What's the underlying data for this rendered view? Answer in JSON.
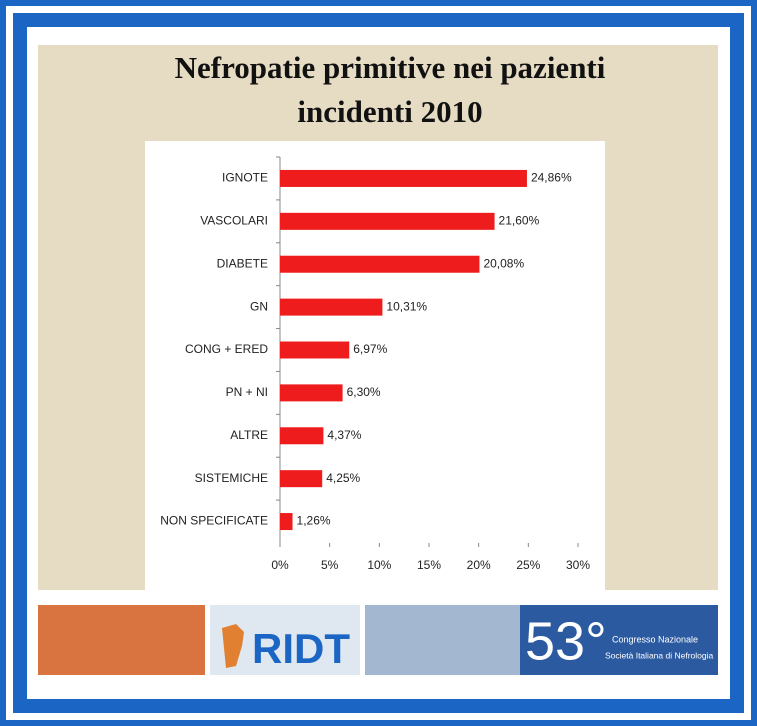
{
  "chart_data": {
    "type": "bar",
    "orientation": "horizontal",
    "title": [
      "Nefropatie primitive nei pazienti",
      "incidenti 2010"
    ],
    "categories": [
      "IGNOTE",
      "VASCOLARI",
      "DIABETE",
      "GN",
      "CONG + ERED",
      "PN + NI",
      "ALTRE",
      "SISTEMICHE",
      "NON SPECIFICATE"
    ],
    "values": [
      24.86,
      21.6,
      20.08,
      10.31,
      6.97,
      6.3,
      4.37,
      4.25,
      1.26
    ],
    "value_labels": [
      "24,86%",
      "21,60%",
      "20,08%",
      "10,31%",
      "6,97%",
      "6,30%",
      "4,37%",
      "4,25%",
      "1,26%"
    ],
    "color": "#ee1c1c",
    "xlim": [
      0,
      30
    ],
    "xticks": [
      {
        "value": 0,
        "label": "0%"
      },
      {
        "value": 5,
        "label": "5%"
      },
      {
        "value": 10,
        "label": "10%"
      },
      {
        "value": 15,
        "label": "15%"
      },
      {
        "value": 20,
        "label": "20%"
      },
      {
        "value": 25,
        "label": "25%"
      },
      {
        "value": 30,
        "label": "30%"
      }
    ],
    "grid": false
  },
  "footer": {
    "logo": "RIDT",
    "congress_number": "53°",
    "congress_text": "Congresso Nazionale",
    "society": "Società Italiana di Nefrologia"
  }
}
